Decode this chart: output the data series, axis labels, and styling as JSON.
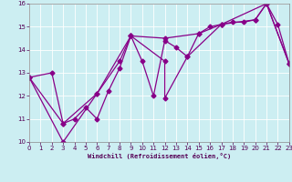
{
  "title": "",
  "xlabel": "Windchill (Refroidissement éolien,°C)",
  "ylabel": "",
  "bg_color": "#cceef2",
  "line_color": "#880088",
  "x_min": 0,
  "x_max": 23,
  "y_min": 10,
  "y_max": 16,
  "x_ticks": [
    0,
    1,
    2,
    3,
    4,
    5,
    6,
    7,
    8,
    9,
    10,
    11,
    12,
    13,
    14,
    15,
    16,
    17,
    18,
    19,
    20,
    21,
    22,
    23
  ],
  "y_ticks": [
    10,
    11,
    12,
    13,
    14,
    15,
    16
  ],
  "line1": [
    [
      0,
      12.8
    ],
    [
      2,
      13.0
    ],
    [
      3,
      10.8
    ],
    [
      4,
      11.0
    ],
    [
      5,
      11.5
    ],
    [
      6,
      11.0
    ],
    [
      7,
      12.2
    ],
    [
      8,
      13.2
    ],
    [
      9,
      14.6
    ],
    [
      10,
      13.5
    ],
    [
      11,
      12.0
    ],
    [
      12,
      14.4
    ],
    [
      13,
      14.1
    ],
    [
      14,
      13.7
    ],
    [
      15,
      14.7
    ],
    [
      16,
      15.0
    ],
    [
      17,
      15.1
    ],
    [
      18,
      15.2
    ],
    [
      19,
      15.2
    ],
    [
      20,
      15.3
    ],
    [
      21,
      16.0
    ],
    [
      22,
      15.1
    ],
    [
      23,
      13.4
    ]
  ],
  "line2": [
    [
      0,
      12.8
    ],
    [
      3,
      10.0
    ],
    [
      6,
      12.1
    ],
    [
      9,
      14.6
    ],
    [
      12,
      13.5
    ],
    [
      12,
      11.9
    ],
    [
      14,
      13.7
    ],
    [
      17,
      15.1
    ],
    [
      21,
      16.0
    ],
    [
      23,
      13.4
    ]
  ],
  "line3": [
    [
      0,
      12.8
    ],
    [
      3,
      10.8
    ],
    [
      6,
      12.1
    ],
    [
      8,
      13.5
    ],
    [
      9,
      14.6
    ],
    [
      12,
      14.5
    ],
    [
      15,
      14.7
    ],
    [
      17,
      15.1
    ],
    [
      20,
      15.3
    ],
    [
      21,
      16.0
    ],
    [
      23,
      13.4
    ]
  ]
}
